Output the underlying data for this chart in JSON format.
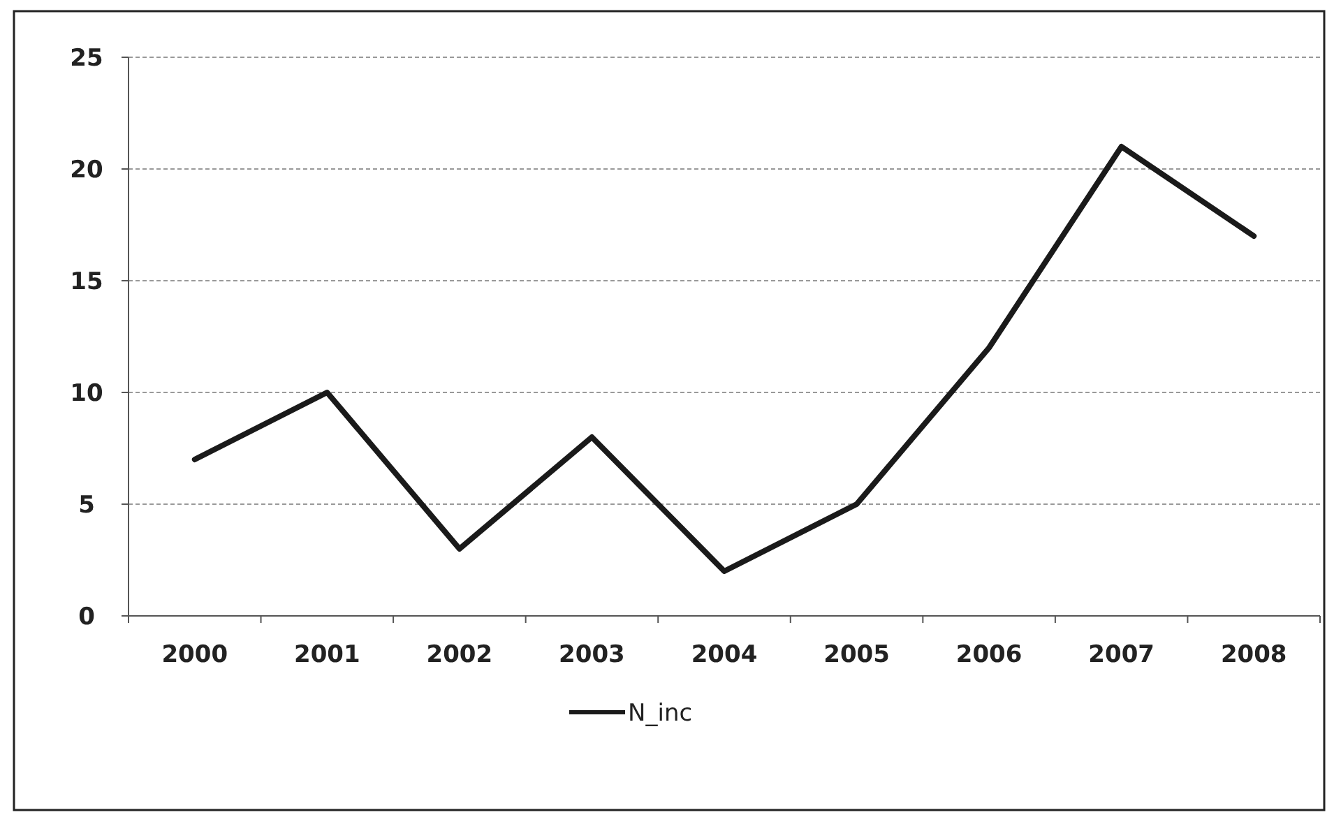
{
  "chart_data": {
    "type": "line",
    "categories": [
      "2000",
      "2001",
      "2002",
      "2003",
      "2004",
      "2005",
      "2006",
      "2007",
      "2008"
    ],
    "series": [
      {
        "name": "N_inc",
        "color": "#1a1a1a",
        "values": [
          7,
          10,
          3,
          8,
          2,
          5,
          12,
          21,
          17
        ]
      }
    ],
    "ylim": [
      0,
      25
    ],
    "yticks": [
      0,
      5,
      10,
      15,
      20,
      25
    ],
    "grid": "y",
    "legend": "bottom",
    "marker": "none",
    "line_style": "solid"
  }
}
